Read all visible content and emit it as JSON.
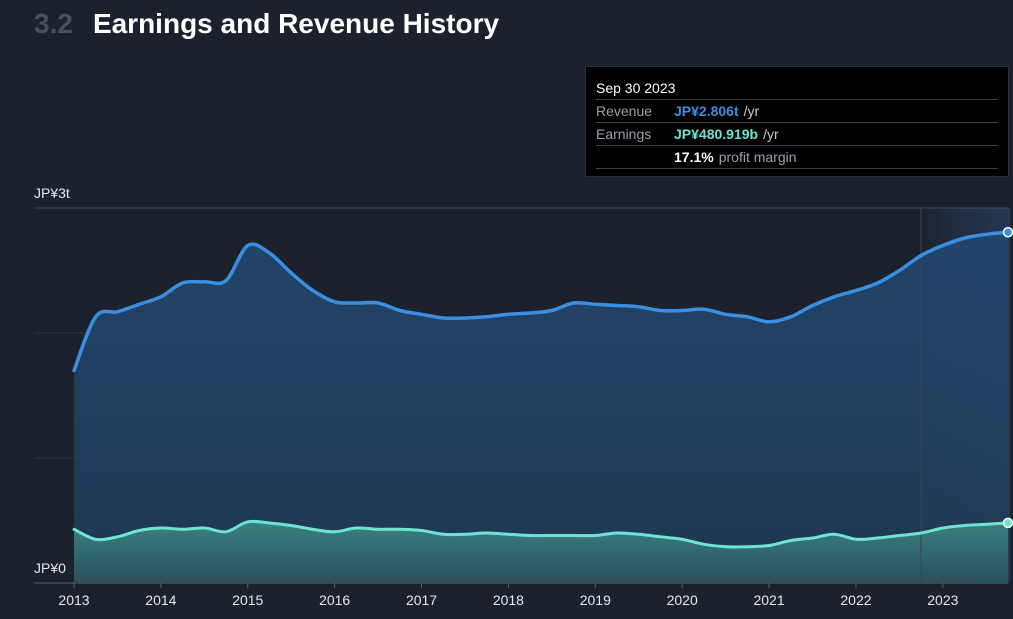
{
  "header": {
    "section_number": "3.2",
    "title": "Earnings and Revenue History"
  },
  "tooltip": {
    "date": "Sep 30 2023",
    "revenue_label": "Revenue",
    "revenue_value": "JP¥2.806t",
    "revenue_unit": "/yr",
    "earnings_label": "Earnings",
    "earnings_value": "JP¥480.919b",
    "earnings_unit": "/yr",
    "margin_value": "17.1%",
    "margin_label": "profit margin"
  },
  "colors": {
    "revenue": "#3b8fe0",
    "earnings": "#6ee4d2",
    "background": "#1b222d"
  },
  "chart_data": {
    "type": "area",
    "title": "Earnings and Revenue History",
    "y_tick_labels": [
      "JP¥3t",
      "JP¥0"
    ],
    "ylim": [
      0,
      3000
    ],
    "y_unit": "JP¥ billions",
    "xlim": [
      2013.0,
      2023.75
    ],
    "x_tick_labels": [
      "2013",
      "2014",
      "2015",
      "2016",
      "2017",
      "2018",
      "2019",
      "2020",
      "2021",
      "2022",
      "2023"
    ],
    "grid": true,
    "series": [
      {
        "name": "Revenue",
        "x": [
          2013.0,
          2013.25,
          2013.5,
          2013.75,
          2014.0,
          2014.25,
          2014.5,
          2014.75,
          2015.0,
          2015.25,
          2015.5,
          2015.75,
          2016.0,
          2016.25,
          2016.5,
          2016.75,
          2017.0,
          2017.25,
          2017.5,
          2017.75,
          2018.0,
          2018.25,
          2018.5,
          2018.75,
          2019.0,
          2019.25,
          2019.5,
          2019.75,
          2020.0,
          2020.25,
          2020.5,
          2020.75,
          2021.0,
          2021.25,
          2021.5,
          2021.75,
          2022.0,
          2022.25,
          2022.5,
          2022.75,
          2023.0,
          2023.25,
          2023.5,
          2023.75
        ],
        "values": [
          1700,
          2130,
          2170,
          2230,
          2290,
          2400,
          2410,
          2420,
          2700,
          2640,
          2480,
          2340,
          2250,
          2240,
          2240,
          2180,
          2150,
          2120,
          2120,
          2130,
          2150,
          2160,
          2180,
          2240,
          2230,
          2220,
          2210,
          2180,
          2180,
          2190,
          2150,
          2130,
          2090,
          2130,
          2220,
          2290,
          2340,
          2400,
          2500,
          2620,
          2700,
          2760,
          2790,
          2806
        ]
      },
      {
        "name": "Earnings",
        "x": [
          2013.0,
          2013.25,
          2013.5,
          2013.75,
          2014.0,
          2014.25,
          2014.5,
          2014.75,
          2015.0,
          2015.25,
          2015.5,
          2015.75,
          2016.0,
          2016.25,
          2016.5,
          2016.75,
          2017.0,
          2017.25,
          2017.5,
          2017.75,
          2018.0,
          2018.25,
          2018.5,
          2018.75,
          2019.0,
          2019.25,
          2019.5,
          2019.75,
          2020.0,
          2020.25,
          2020.5,
          2020.75,
          2021.0,
          2021.25,
          2021.5,
          2021.75,
          2022.0,
          2022.25,
          2022.5,
          2022.75,
          2023.0,
          2023.25,
          2023.5,
          2023.75
        ],
        "values": [
          430,
          350,
          370,
          420,
          440,
          430,
          440,
          410,
          490,
          480,
          460,
          430,
          410,
          440,
          430,
          430,
          420,
          390,
          390,
          400,
          390,
          380,
          380,
          380,
          380,
          400,
          390,
          370,
          350,
          310,
          290,
          290,
          300,
          340,
          360,
          390,
          350,
          360,
          380,
          400,
          440,
          460,
          470,
          480.919
        ]
      }
    ]
  }
}
